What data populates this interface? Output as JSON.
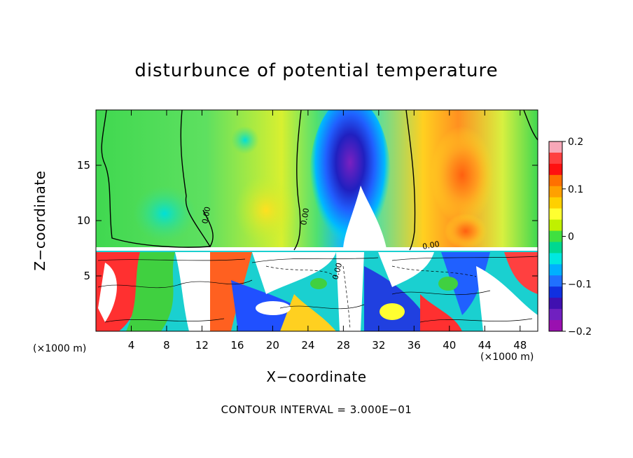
{
  "chart_data": {
    "type": "heatmap",
    "title": "disturbunce of potential temperature",
    "xlabel": "X−coordinate",
    "ylabel": "Z−coordinate",
    "x_unit": "(×1000 m)",
    "z_unit": "(×1000 m)",
    "xlim": [
      0,
      50
    ],
    "ylim": [
      0,
      20
    ],
    "x_ticks": [
      4,
      8,
      12,
      16,
      20,
      24,
      28,
      32,
      36,
      40,
      44,
      48
    ],
    "y_ticks": [
      5,
      10,
      15
    ],
    "colorbar": {
      "range": [
        -0.2,
        0.2
      ],
      "tick_values": [
        0.2,
        0.1,
        0,
        -0.1,
        -0.2
      ],
      "tick_labels": [
        "0.2",
        "0.1",
        "0",
        "−0.1",
        "−0.2"
      ],
      "colors": [
        "#f7a8b8",
        "#ff4040",
        "#ff1010",
        "#ff7000",
        "#ffa000",
        "#ffd000",
        "#ffff30",
        "#c0f000",
        "#40e040",
        "#00d890",
        "#00e8e0",
        "#00b0ff",
        "#2070ff",
        "#1030e0",
        "#4010b0",
        "#7020c0",
        "#9a10b0"
      ]
    },
    "contour_labels": [
      "0.00",
      "0.00",
      "0.00",
      "0.00"
    ],
    "footer": "CONTOUR INTERVAL = 3.000E−01"
  },
  "colors": {
    "background": "#ffffff",
    "axis": "#000000"
  }
}
